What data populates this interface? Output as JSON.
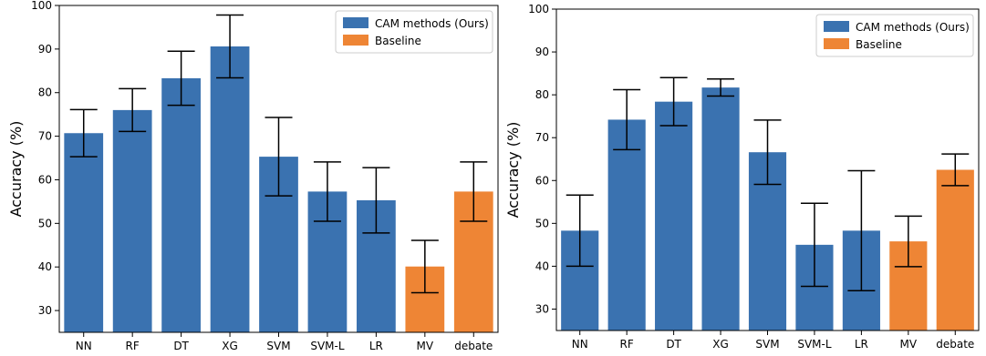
{
  "chart_data": [
    {
      "type": "bar",
      "categories": [
        "NN",
        "RF",
        "DT",
        "XG",
        "SVM",
        "SVM-L",
        "LR",
        "MV",
        "debate"
      ],
      "values": [
        70.7,
        76.0,
        83.3,
        90.6,
        65.3,
        57.3,
        55.3,
        40.1,
        57.3
      ],
      "errors": [
        5.4,
        4.9,
        6.2,
        7.2,
        9.0,
        6.8,
        7.5,
        6.0,
        6.8
      ],
      "groups": [
        "CAM methods (Ours)",
        "CAM methods (Ours)",
        "CAM methods (Ours)",
        "CAM methods (Ours)",
        "CAM methods (Ours)",
        "CAM methods (Ours)",
        "CAM methods (Ours)",
        "Baseline",
        "Baseline"
      ],
      "series": [
        {
          "name": "CAM methods (Ours)",
          "color": "#3a72b0"
        },
        {
          "name": "Baseline",
          "color": "#ee8535"
        }
      ],
      "ylabel": "Accuracy (%)",
      "ylim": [
        25,
        100
      ],
      "yticks": [
        30,
        40,
        50,
        60,
        70,
        80,
        90,
        100
      ],
      "legend": "top-right",
      "grid": false
    },
    {
      "type": "bar",
      "categories": [
        "NN",
        "RF",
        "DT",
        "XG",
        "SVM",
        "SVM-L",
        "LR",
        "MV",
        "debate"
      ],
      "values": [
        48.3,
        74.2,
        78.4,
        81.7,
        66.6,
        45.0,
        48.3,
        45.8,
        62.5
      ],
      "errors": [
        8.3,
        7.0,
        5.6,
        2.0,
        7.5,
        9.7,
        14.0,
        5.9,
        3.7
      ],
      "groups": [
        "CAM methods (Ours)",
        "CAM methods (Ours)",
        "CAM methods (Ours)",
        "CAM methods (Ours)",
        "CAM methods (Ours)",
        "CAM methods (Ours)",
        "CAM methods (Ours)",
        "Baseline",
        "Baseline"
      ],
      "series": [
        {
          "name": "CAM methods (Ours)",
          "color": "#3a72b0"
        },
        {
          "name": "Baseline",
          "color": "#ee8535"
        }
      ],
      "ylabel": "Accuracy (%)",
      "ylim": [
        25,
        100
      ],
      "yticks": [
        30,
        40,
        50,
        60,
        70,
        80,
        90,
        100
      ],
      "legend": "top-right",
      "grid": false
    }
  ]
}
